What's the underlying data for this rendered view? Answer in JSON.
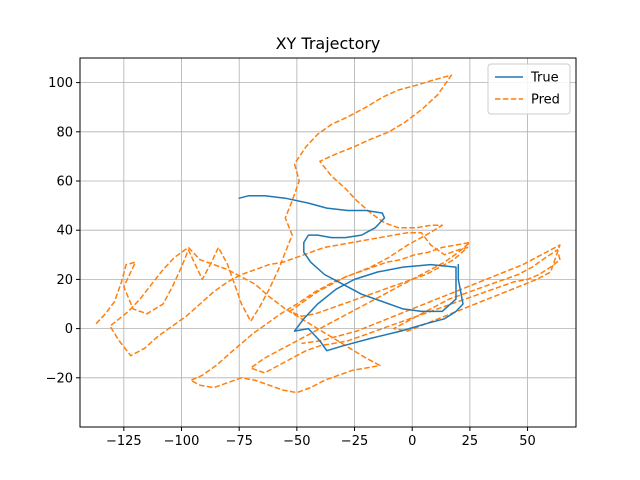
{
  "chart_data": {
    "type": "line",
    "title": "XY Trajectory",
    "xlabel": "",
    "ylabel": "",
    "xlim": [
      -144,
      71
    ],
    "ylim": [
      -40,
      110
    ],
    "xticks": [
      -125,
      -100,
      -75,
      -50,
      -25,
      0,
      25,
      50
    ],
    "yticks": [
      -20,
      0,
      20,
      40,
      60,
      80,
      100
    ],
    "grid": true,
    "legend": "top-right",
    "series": [
      {
        "name": "True",
        "color": "#1f77b4",
        "style": "solid",
        "points": [
          [
            -75,
            53
          ],
          [
            -71,
            54
          ],
          [
            -64,
            54
          ],
          [
            -55,
            53
          ],
          [
            -45,
            51
          ],
          [
            -37,
            49
          ],
          [
            -28,
            48
          ],
          [
            -20,
            48
          ],
          [
            -13,
            47
          ],
          [
            -12,
            45
          ],
          [
            -16,
            41
          ],
          [
            -22,
            38
          ],
          [
            -29,
            37
          ],
          [
            -35,
            37
          ],
          [
            -41,
            38
          ],
          [
            -45,
            38
          ],
          [
            -47,
            35
          ],
          [
            -47,
            31
          ],
          [
            -44,
            27
          ],
          [
            -38,
            22
          ],
          [
            -30,
            18
          ],
          [
            -22,
            14
          ],
          [
            -13,
            11
          ],
          [
            -4,
            8
          ],
          [
            4,
            7
          ],
          [
            13,
            7
          ],
          [
            19,
            12
          ],
          [
            19,
            20
          ],
          [
            19,
            25
          ],
          [
            8,
            26
          ],
          [
            -4,
            25
          ],
          [
            -15,
            23
          ],
          [
            -25,
            20
          ],
          [
            -33,
            16
          ],
          [
            -41,
            10
          ],
          [
            -47,
            4
          ],
          [
            -51,
            -1
          ],
          [
            -45,
            0
          ],
          [
            -40,
            -5
          ],
          [
            -37,
            -9
          ],
          [
            -30,
            -7
          ],
          [
            -18,
            -4
          ],
          [
            -5,
            -1
          ],
          [
            6,
            2
          ],
          [
            14,
            4
          ],
          [
            19,
            7
          ],
          [
            22,
            10
          ],
          [
            21,
            15
          ],
          [
            20,
            20
          ],
          [
            20,
            26
          ]
        ]
      },
      {
        "name": "Pred",
        "color": "#ff7f0e",
        "style": "dashed",
        "points": [
          [
            -137,
            2
          ],
          [
            -133,
            6
          ],
          [
            -129,
            11
          ],
          [
            -126,
            19
          ],
          [
            -124,
            26
          ],
          [
            -120,
            27
          ],
          [
            -125,
            17
          ],
          [
            -121,
            8
          ],
          [
            -115,
            6
          ],
          [
            -108,
            10
          ],
          [
            -104,
            17
          ],
          [
            -100,
            25
          ],
          [
            -97,
            32
          ],
          [
            -94,
            26
          ],
          [
            -91,
            20
          ],
          [
            -87,
            27
          ],
          [
            -84,
            33
          ],
          [
            -80,
            26
          ],
          [
            -77,
            18
          ],
          [
            -74,
            10
          ],
          [
            -70,
            3
          ],
          [
            -66,
            9
          ],
          [
            -62,
            16
          ],
          [
            -58,
            24
          ],
          [
            -55,
            31
          ],
          [
            -52,
            38
          ],
          [
            -55,
            45
          ],
          [
            -52,
            52
          ],
          [
            -49,
            60
          ],
          [
            -51,
            67
          ],
          [
            -46,
            74
          ],
          [
            -41,
            79
          ],
          [
            -35,
            83
          ],
          [
            -28,
            86
          ],
          [
            -20,
            90
          ],
          [
            -13,
            94
          ],
          [
            -6,
            97
          ],
          [
            2,
            99
          ],
          [
            9,
            101
          ],
          [
            17,
            103
          ],
          [
            11,
            95
          ],
          [
            4,
            89
          ],
          [
            -3,
            84
          ],
          [
            -10,
            80
          ],
          [
            -18,
            77
          ],
          [
            -25,
            74
          ],
          [
            -33,
            71
          ],
          [
            -40,
            68
          ],
          [
            -35,
            62
          ],
          [
            -29,
            57
          ],
          [
            -24,
            52
          ],
          [
            -18,
            47
          ],
          [
            -12,
            43
          ],
          [
            -6,
            41
          ],
          [
            2,
            41
          ],
          [
            8,
            42
          ],
          [
            13,
            42
          ],
          [
            6,
            38
          ],
          [
            -2,
            34
          ],
          [
            -10,
            29
          ],
          [
            -18,
            25
          ],
          [
            -26,
            22
          ],
          [
            -34,
            19
          ],
          [
            -42,
            15
          ],
          [
            -50,
            10
          ],
          [
            -57,
            6
          ],
          [
            -63,
            2
          ],
          [
            -69,
            -2
          ],
          [
            -74,
            -6
          ],
          [
            -79,
            -10
          ],
          [
            -85,
            -15
          ],
          [
            -91,
            -19
          ],
          [
            -96,
            -21
          ],
          [
            -92,
            -23
          ],
          [
            -86,
            -24
          ],
          [
            -80,
            -22
          ],
          [
            -74,
            -20
          ],
          [
            -68,
            -21
          ],
          [
            -62,
            -23
          ],
          [
            -56,
            -25
          ],
          [
            -50,
            -26
          ],
          [
            -44,
            -24
          ],
          [
            -38,
            -21
          ],
          [
            -32,
            -19
          ],
          [
            -26,
            -17
          ],
          [
            -20,
            -16
          ],
          [
            -14,
            -15
          ],
          [
            -20,
            -12
          ],
          [
            -27,
            -8
          ],
          [
            -34,
            -4
          ],
          [
            -41,
            0
          ],
          [
            -48,
            4
          ],
          [
            -55,
            8
          ],
          [
            -62,
            13
          ],
          [
            -68,
            18
          ],
          [
            -74,
            21
          ],
          [
            -80,
            24
          ],
          [
            -86,
            26
          ],
          [
            -92,
            28
          ],
          [
            -97,
            33
          ],
          [
            -103,
            29
          ],
          [
            -108,
            24
          ],
          [
            -113,
            18
          ],
          [
            -118,
            12
          ],
          [
            -123,
            7
          ],
          [
            -127,
            4
          ],
          [
            -131,
            1
          ],
          [
            -127,
            -5
          ],
          [
            -122,
            -11
          ],
          [
            -116,
            -8
          ],
          [
            -110,
            -3
          ],
          [
            -104,
            1
          ],
          [
            -98,
            5
          ],
          [
            -92,
            10
          ],
          [
            -86,
            15
          ],
          [
            -80,
            19
          ],
          [
            -74,
            22
          ],
          [
            -68,
            24
          ],
          [
            -62,
            26
          ],
          [
            -56,
            27
          ],
          [
            -50,
            29
          ],
          [
            -44,
            31
          ],
          [
            -38,
            33
          ],
          [
            -32,
            34
          ],
          [
            -26,
            35
          ],
          [
            -20,
            36
          ],
          [
            -14,
            37
          ],
          [
            -8,
            38
          ],
          [
            -2,
            39
          ],
          [
            4,
            39
          ],
          [
            8,
            34
          ],
          [
            14,
            30
          ],
          [
            20,
            32
          ],
          [
            24,
            33
          ],
          [
            18,
            28
          ],
          [
            12,
            25
          ],
          [
            6,
            22
          ],
          [
            0,
            20
          ],
          [
            -6,
            18
          ],
          [
            -12,
            16
          ],
          [
            -18,
            14
          ],
          [
            -24,
            12
          ],
          [
            -30,
            10
          ],
          [
            -36,
            8
          ],
          [
            -42,
            6
          ],
          [
            -48,
            5
          ],
          [
            -53,
            7
          ],
          [
            -47,
            11
          ],
          [
            -41,
            15
          ],
          [
            -35,
            18
          ],
          [
            -29,
            21
          ],
          [
            -23,
            23
          ],
          [
            -17,
            25
          ],
          [
            -11,
            27
          ],
          [
            -5,
            28
          ],
          [
            1,
            30
          ],
          [
            7,
            31
          ],
          [
            13,
            33
          ],
          [
            19,
            34
          ],
          [
            25,
            35
          ],
          [
            20,
            31
          ],
          [
            14,
            27
          ],
          [
            8,
            24
          ],
          [
            2,
            21
          ],
          [
            -4,
            18
          ],
          [
            -10,
            15
          ],
          [
            -16,
            12
          ],
          [
            -22,
            9
          ],
          [
            -28,
            6
          ],
          [
            -34,
            3
          ],
          [
            -40,
            0
          ],
          [
            -46,
            -3
          ],
          [
            -52,
            -6
          ],
          [
            -58,
            -9
          ],
          [
            -64,
            -12
          ],
          [
            -70,
            -16
          ],
          [
            -64,
            -18
          ],
          [
            -58,
            -15
          ],
          [
            -52,
            -12
          ],
          [
            -46,
            -9
          ],
          [
            -40,
            -7
          ],
          [
            -34,
            -6
          ],
          [
            -28,
            -5
          ],
          [
            -22,
            -3
          ],
          [
            -16,
            -1
          ],
          [
            -10,
            1
          ],
          [
            -4,
            3
          ],
          [
            2,
            5
          ],
          [
            8,
            7
          ],
          [
            14,
            9
          ],
          [
            20,
            11
          ],
          [
            26,
            13
          ],
          [
            32,
            15
          ],
          [
            38,
            17
          ],
          [
            44,
            19
          ],
          [
            50,
            20
          ],
          [
            55,
            22
          ],
          [
            60,
            25
          ],
          [
            64,
            28
          ],
          [
            63,
            32
          ],
          [
            58,
            29
          ],
          [
            52,
            25
          ],
          [
            46,
            22
          ],
          [
            40,
            20
          ],
          [
            34,
            18
          ],
          [
            28,
            16
          ],
          [
            22,
            14
          ],
          [
            16,
            12
          ],
          [
            10,
            9
          ],
          [
            4,
            6
          ],
          [
            -2,
            3
          ],
          [
            -8,
            0
          ],
          [
            -2,
            -1
          ],
          [
            6,
            2
          ],
          [
            14,
            5
          ],
          [
            22,
            8
          ],
          [
            30,
            11
          ],
          [
            38,
            14
          ],
          [
            46,
            17
          ],
          [
            54,
            20
          ],
          [
            60,
            23
          ],
          [
            64,
            34
          ],
          [
            56,
            30
          ],
          [
            48,
            26
          ],
          [
            40,
            23
          ],
          [
            32,
            20
          ],
          [
            24,
            17
          ],
          [
            16,
            14
          ],
          [
            8,
            11
          ],
          [
            0,
            8
          ],
          [
            -8,
            5
          ],
          [
            -16,
            2
          ],
          [
            -24,
            -1
          ],
          [
            -32,
            -3
          ],
          [
            -40,
            -5
          ],
          [
            -48,
            -6
          ]
        ]
      }
    ]
  }
}
